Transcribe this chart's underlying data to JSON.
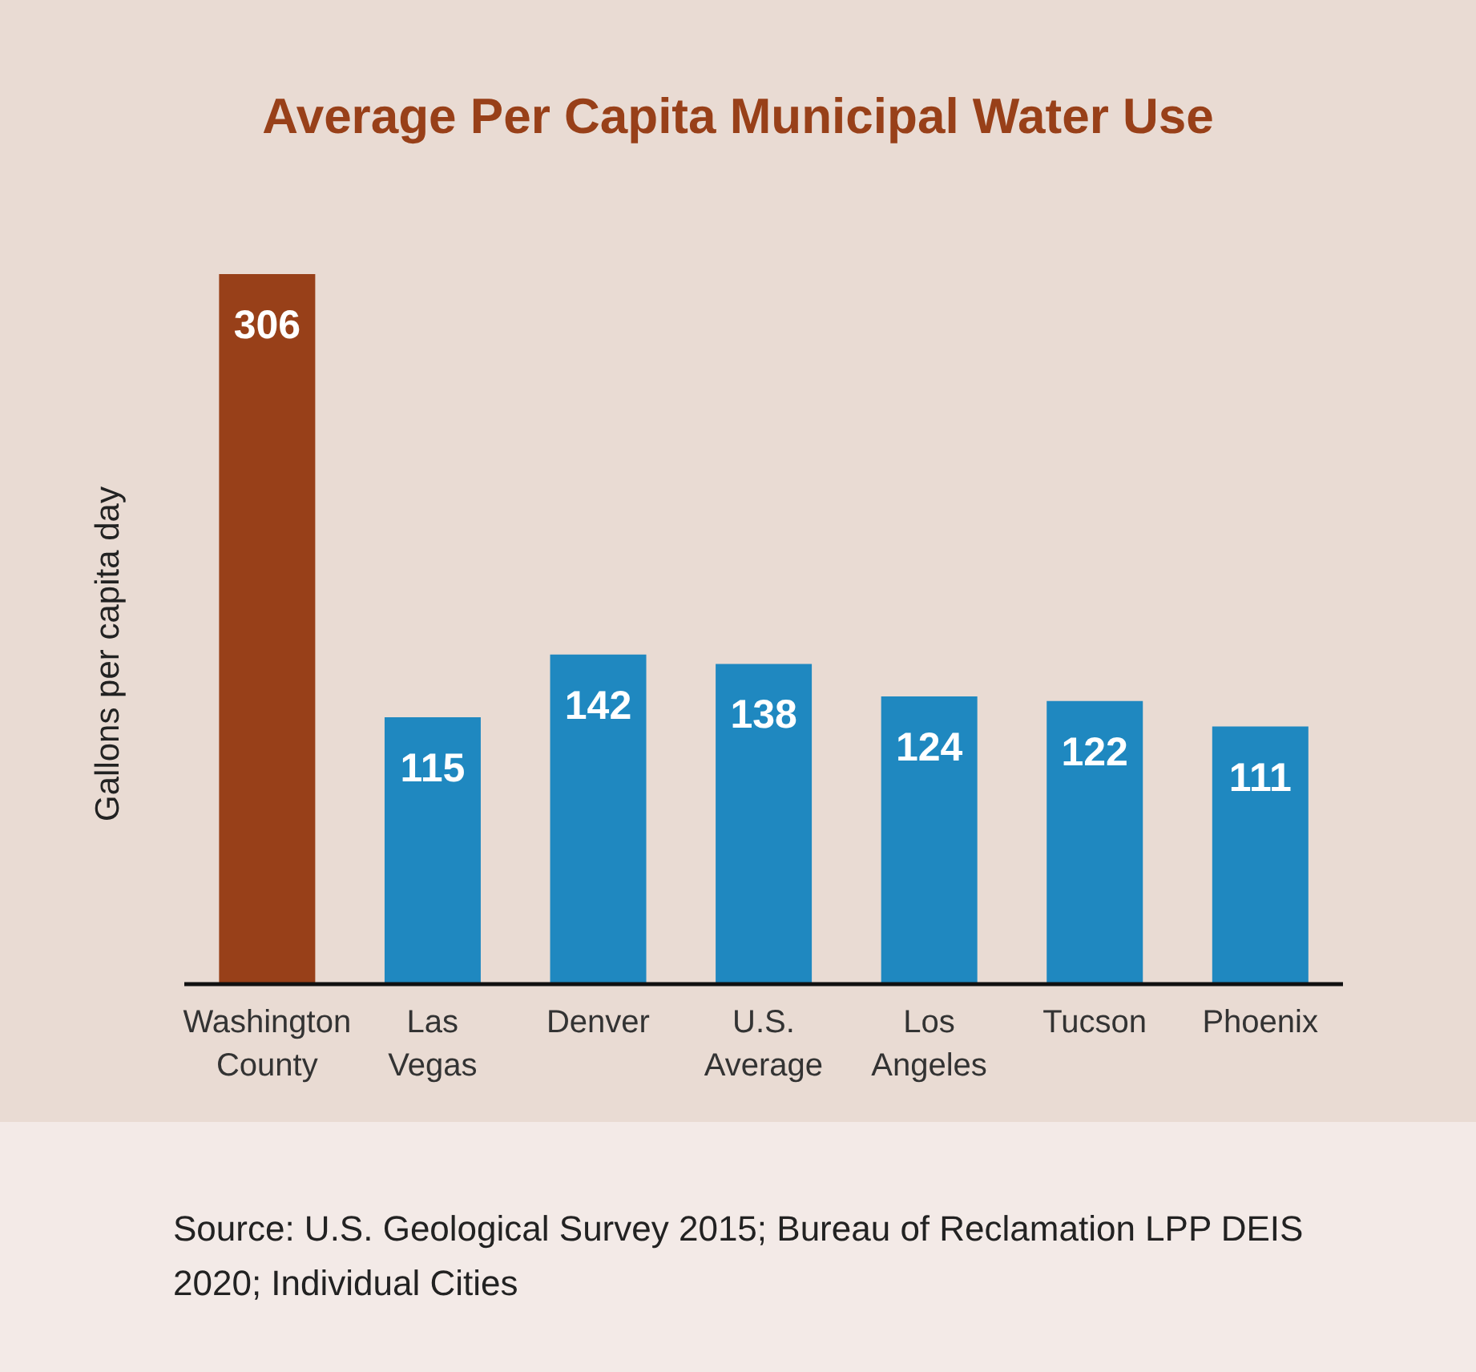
{
  "chart_data": {
    "type": "bar",
    "title": "Average Per Capita Municipal Water Use",
    "ylabel": "Gallons per capita day",
    "categories": [
      "Washington County",
      "Las Vegas",
      "Denver",
      "U.S. Average",
      "Los Angeles",
      "Tucson",
      "Phoenix"
    ],
    "values": [
      306,
      115,
      142,
      138,
      124,
      122,
      111
    ],
    "colors": [
      "#984019",
      "#1f88c0",
      "#1f88c0",
      "#1f88c0",
      "#1f88c0",
      "#1f88c0",
      "#1f88c0"
    ],
    "data_labels": true,
    "grid": false,
    "legend": false,
    "annotations": [
      "Source: U.S. Geological Survey 2015; Bureau of Reclamation LPP DEIS 2020; Individual Cities"
    ]
  }
}
